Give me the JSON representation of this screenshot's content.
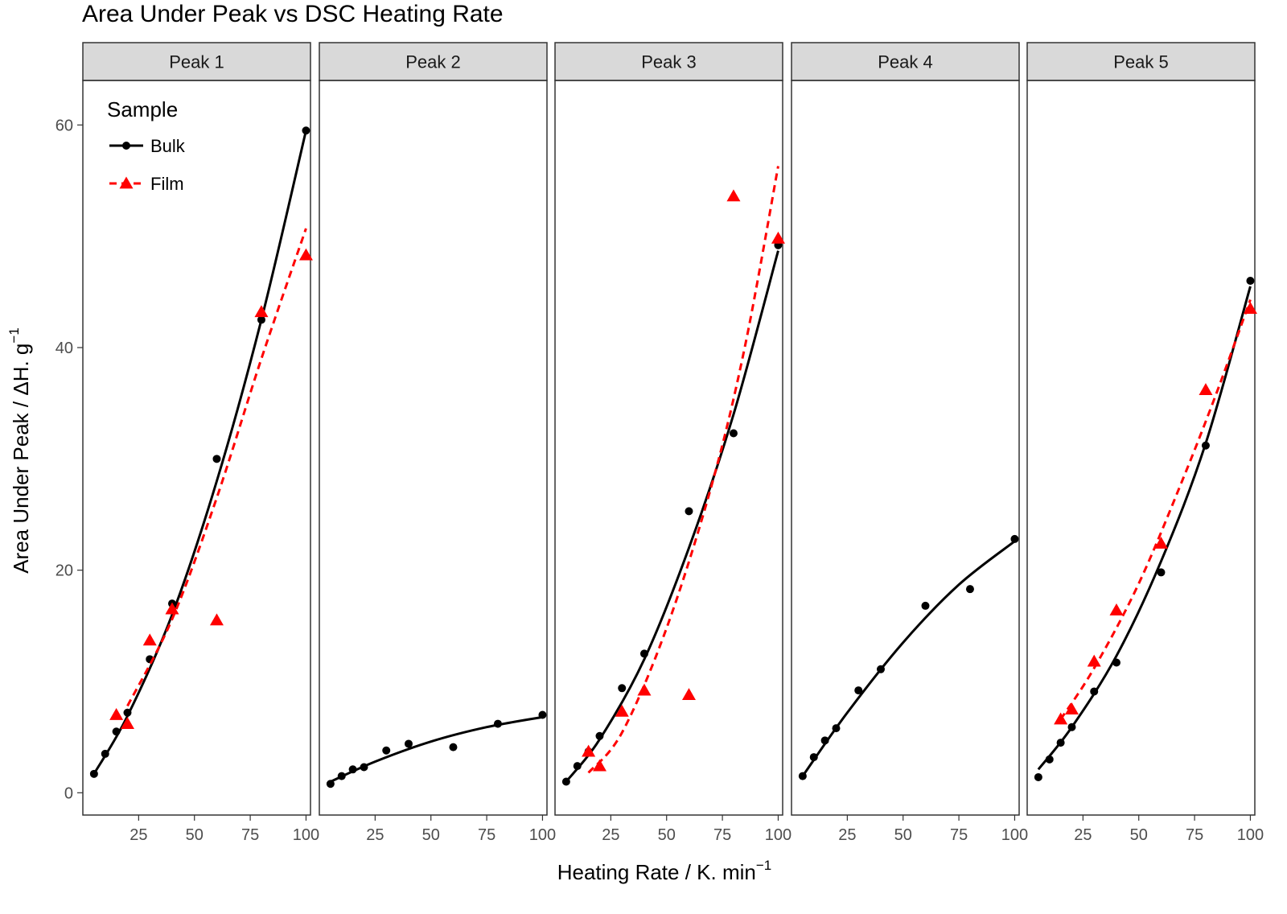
{
  "chart_data": {
    "type": "scatter",
    "title": "Area Under Peak vs DSC Heating Rate",
    "xlabel": "Heating Rate / K. min",
    "xlabel_superscript": "−1",
    "ylabel": "Area Under Peak / ΔH. g",
    "ylabel_superscript": "−1",
    "xlim": [
      0,
      102
    ],
    "ylim": [
      -2,
      64
    ],
    "x_ticks": [
      25,
      50,
      75,
      100
    ],
    "y_ticks": [
      0,
      20,
      40,
      60
    ],
    "grid": false,
    "legend": {
      "title": "Sample",
      "placement": "top-left inside first panel",
      "entries": [
        {
          "name": "Bulk",
          "color": "#000000",
          "marker": "circle",
          "line": "solid"
        },
        {
          "name": "Film",
          "color": "#ff0000",
          "marker": "triangle",
          "line": "dashed"
        }
      ]
    },
    "panels": [
      {
        "label": "Peak 1",
        "series": [
          {
            "name": "Bulk",
            "x": [
              5,
              10,
              15,
              20,
              30,
              40,
              60,
              80,
              100
            ],
            "y": [
              1.7,
              3.5,
              5.5,
              7.2,
              12.0,
              17.0,
              30.0,
              42.5,
              59.5
            ],
            "fit": [
              [
                5,
                1.7
              ],
              [
                20,
                6.9
              ],
              [
                40,
                16.0
              ],
              [
                60,
                28.0
              ],
              [
                80,
                42.5
              ],
              [
                100,
                59.5
              ]
            ]
          },
          {
            "name": "Film",
            "x": [
              15,
              20,
              30,
              40,
              60,
              80,
              100
            ],
            "y": [
              7.0,
              6.2,
              13.7,
              16.5,
              15.5,
              43.2,
              48.3
            ],
            "fit": [
              [
                20,
                7.8
              ],
              [
                40,
                15.6
              ],
              [
                60,
                26.5
              ],
              [
                80,
                39.0
              ],
              [
                100,
                50.7
              ]
            ]
          }
        ]
      },
      {
        "label": "Peak 2",
        "series": [
          {
            "name": "Bulk",
            "x": [
              5,
              10,
              15,
              20,
              30,
              40,
              60,
              80,
              100
            ],
            "y": [
              0.8,
              1.5,
              2.1,
              2.3,
              3.8,
              4.4,
              4.1,
              6.2,
              7.0
            ],
            "fit": [
              [
                5,
                1.0
              ],
              [
                25,
                2.8
              ],
              [
                50,
                4.6
              ],
              [
                75,
                5.9
              ],
              [
                100,
                6.8
              ]
            ]
          }
        ]
      },
      {
        "label": "Peak 3",
        "series": [
          {
            "name": "Bulk",
            "x": [
              5,
              10,
              15,
              20,
              30,
              40,
              60,
              80,
              100
            ],
            "y": [
              1.0,
              2.4,
              3.7,
              5.1,
              9.4,
              12.5,
              25.3,
              32.3,
              49.2
            ],
            "fit": [
              [
                5,
                1.0
              ],
              [
                20,
                4.8
              ],
              [
                40,
                12.0
              ],
              [
                60,
                22.0
              ],
              [
                80,
                34.0
              ],
              [
                100,
                48.7
              ]
            ]
          },
          {
            "name": "Film",
            "x": [
              15,
              20,
              30,
              40,
              60,
              80,
              100
            ],
            "y": [
              3.7,
              2.4,
              7.3,
              9.2,
              8.8,
              53.6,
              49.8
            ],
            "fit": [
              [
                15,
                1.8
              ],
              [
                30,
                5.4
              ],
              [
                50,
                14.8
              ],
              [
                70,
                27.5
              ],
              [
                85,
                40.0
              ],
              [
                100,
                56.3
              ]
            ]
          }
        ]
      },
      {
        "label": "Peak 4",
        "series": [
          {
            "name": "Bulk",
            "x": [
              5,
              10,
              15,
              20,
              30,
              40,
              60,
              80,
              100
            ],
            "y": [
              1.5,
              3.2,
              4.7,
              5.8,
              9.2,
              11.1,
              16.8,
              18.3,
              22.8
            ],
            "fit": [
              [
                5,
                1.5
              ],
              [
                25,
                7.2
              ],
              [
                50,
                13.5
              ],
              [
                75,
                18.7
              ],
              [
                100,
                22.6
              ]
            ]
          }
        ]
      },
      {
        "label": "Peak 5",
        "series": [
          {
            "name": "Bulk",
            "x": [
              5,
              10,
              15,
              20,
              30,
              40,
              60,
              80,
              100
            ],
            "y": [
              1.4,
              3.0,
              4.5,
              5.9,
              9.1,
              11.7,
              19.8,
              31.2,
              46.0
            ],
            "fit": [
              [
                5,
                2.1
              ],
              [
                20,
                5.9
              ],
              [
                40,
                12.3
              ],
              [
                60,
                20.8
              ],
              [
                80,
                31.4
              ],
              [
                100,
                45.5
              ]
            ]
          },
          {
            "name": "Film",
            "x": [
              15,
              20,
              30,
              40,
              60,
              80,
              100
            ],
            "y": [
              6.6,
              7.5,
              11.8,
              16.4,
              22.4,
              36.2,
              43.5
            ],
            "fit": [
              [
                15,
                6.6
              ],
              [
                30,
                11.2
              ],
              [
                50,
                18.8
              ],
              [
                70,
                28.3
              ],
              [
                85,
                36.0
              ],
              [
                100,
                44.3
              ]
            ]
          }
        ]
      }
    ]
  }
}
